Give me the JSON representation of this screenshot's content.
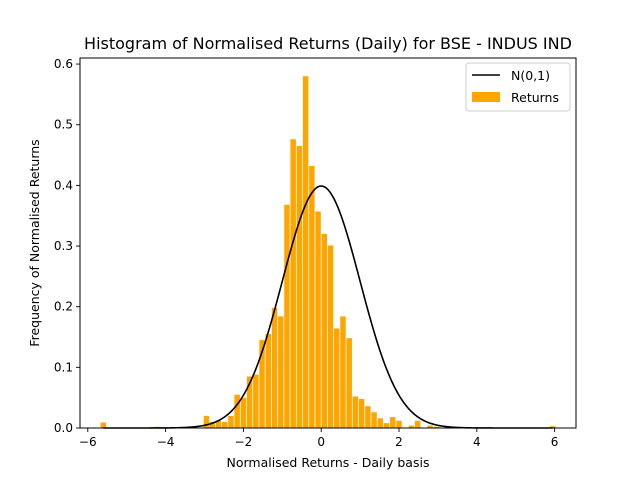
{
  "chart_data": {
    "type": "bar",
    "title": "Histogram of Normalised Returns (Daily) for BSE - INDUS IND",
    "xlabel": "Normalised Returns - Daily basis",
    "ylabel": "Frequency of Normalised Returns",
    "xlim": [
      -6.2,
      6.55
    ],
    "ylim": [
      0,
      0.61
    ],
    "xticks": [
      -6,
      -4,
      -2,
      0,
      2,
      4,
      6
    ],
    "xtick_labels": [
      "−6",
      "−4",
      "−2",
      "0",
      "2",
      "4",
      "6"
    ],
    "yticks": [
      0.0,
      0.1,
      0.2,
      0.3,
      0.4,
      0.5,
      0.6
    ],
    "ytick_labels": [
      "0.0",
      "0.1",
      "0.2",
      "0.3",
      "0.4",
      "0.5",
      "0.6"
    ],
    "grid": false,
    "legend_position": "top-right",
    "bin_width": 0.16,
    "bar_width": 0.14,
    "series": [
      {
        "name": "Returns",
        "type": "histogram",
        "color": "#FFA500",
        "bins": [
          {
            "center": -5.6,
            "value": 0.009
          },
          {
            "center": -4.2,
            "value": 0.002
          },
          {
            "center": -2.95,
            "value": 0.02
          },
          {
            "center": -2.8,
            "value": 0.01
          },
          {
            "center": -2.64,
            "value": 0.012
          },
          {
            "center": -2.48,
            "value": 0.01
          },
          {
            "center": -2.32,
            "value": 0.02
          },
          {
            "center": -2.16,
            "value": 0.055
          },
          {
            "center": -2.0,
            "value": 0.05
          },
          {
            "center": -1.84,
            "value": 0.085
          },
          {
            "center": -1.68,
            "value": 0.088
          },
          {
            "center": -1.52,
            "value": 0.145
          },
          {
            "center": -1.36,
            "value": 0.155
          },
          {
            "center": -1.2,
            "value": 0.198
          },
          {
            "center": -1.04,
            "value": 0.184
          },
          {
            "center": -0.88,
            "value": 0.368
          },
          {
            "center": -0.72,
            "value": 0.476
          },
          {
            "center": -0.56,
            "value": 0.465
          },
          {
            "center": -0.4,
            "value": 0.58
          },
          {
            "center": -0.24,
            "value": 0.432
          },
          {
            "center": -0.08,
            "value": 0.357
          },
          {
            "center": 0.08,
            "value": 0.32
          },
          {
            "center": 0.24,
            "value": 0.301
          },
          {
            "center": 0.4,
            "value": 0.164
          },
          {
            "center": 0.56,
            "value": 0.184
          },
          {
            "center": 0.72,
            "value": 0.148
          },
          {
            "center": 0.88,
            "value": 0.052
          },
          {
            "center": 1.04,
            "value": 0.048
          },
          {
            "center": 1.2,
            "value": 0.036
          },
          {
            "center": 1.36,
            "value": 0.026
          },
          {
            "center": 1.52,
            "value": 0.016
          },
          {
            "center": 1.68,
            "value": 0.008
          },
          {
            "center": 1.84,
            "value": 0.018
          },
          {
            "center": 2.0,
            "value": 0.012
          },
          {
            "center": 2.32,
            "value": 0.004
          },
          {
            "center": 2.48,
            "value": 0.012
          },
          {
            "center": 2.8,
            "value": 0.004
          },
          {
            "center": 2.96,
            "value": 0.002
          },
          {
            "center": 5.95,
            "value": 0.003
          }
        ]
      },
      {
        "name": "N(0,1)",
        "type": "line",
        "color": "#000000",
        "function": "standard_normal_pdf",
        "x_range": [
          -5.6,
          5.95
        ]
      }
    ],
    "legend": [
      {
        "label": "N(0,1)",
        "kind": "line",
        "color": "#000000"
      },
      {
        "label": "Returns",
        "kind": "patch",
        "color": "#FFA500"
      }
    ]
  }
}
